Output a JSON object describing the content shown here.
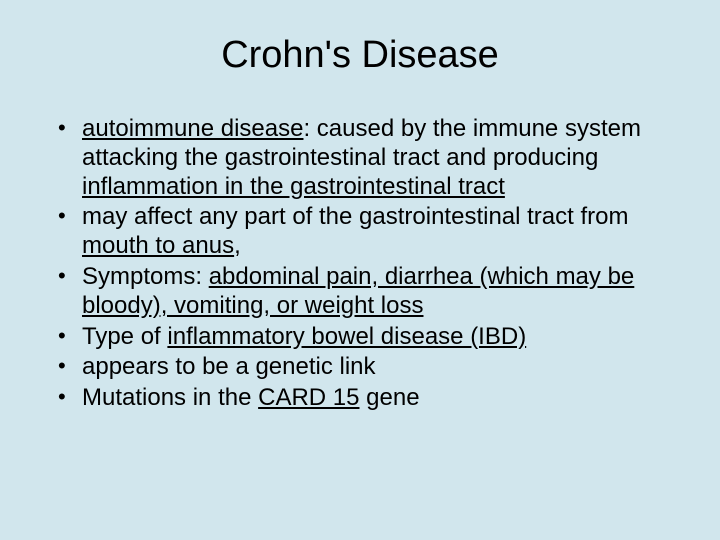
{
  "slide": {
    "title": "Crohn's Disease",
    "background_color": "#d1e6ed",
    "text_color": "#000000",
    "title_fontsize": 38,
    "body_fontsize": 24,
    "bullets": [
      {
        "segments": [
          {
            "text": "autoimmune disease",
            "underline": true
          },
          {
            "text": ": caused by the immune system attacking the gastrointestinal tract and producing ",
            "underline": false
          },
          {
            "text": "inflammation in the gastrointestinal tract",
            "underline": true
          }
        ]
      },
      {
        "segments": [
          {
            "text": "may affect any part of the gastrointestinal tract from ",
            "underline": false
          },
          {
            "text": "mouth to anus",
            "underline": true
          },
          {
            "text": ",",
            "underline": false
          }
        ]
      },
      {
        "segments": [
          {
            "text": "Symptoms: ",
            "underline": false
          },
          {
            "text": "abdominal pain, diarrhea (which may be bloody), vomiting, or weight loss",
            "underline": true
          }
        ]
      },
      {
        "segments": [
          {
            "text": "Type of ",
            "underline": false
          },
          {
            "text": "inflammatory bowel disease (IBD)",
            "underline": true
          }
        ]
      },
      {
        "segments": [
          {
            "text": "appears to be a genetic link",
            "underline": false
          }
        ]
      },
      {
        "segments": [
          {
            "text": "Mutations in the ",
            "underline": false
          },
          {
            "text": "CARD 15",
            "underline": true
          },
          {
            "text": " gene",
            "underline": false
          }
        ]
      }
    ]
  }
}
